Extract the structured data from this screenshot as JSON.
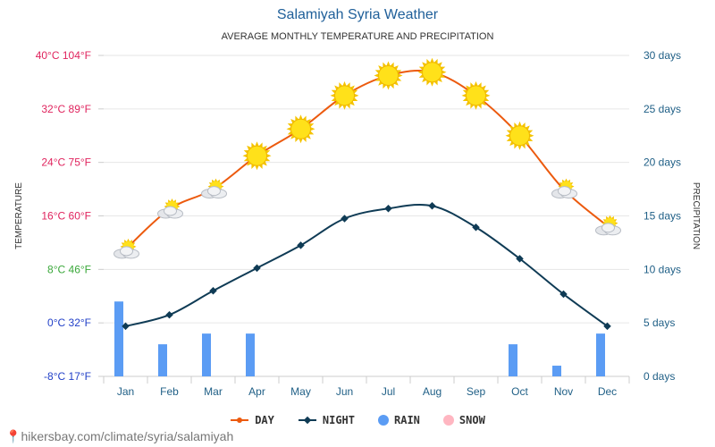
{
  "title": "Salamiyah Syria Weather",
  "subtitle": "AVERAGE MONTHLY TEMPERATURE AND PRECIPITATION",
  "footer_url": "hikersbay.com/climate/syria/salamiyah",
  "colors": {
    "day": "#ec5a0e",
    "night": "#0f3b55",
    "rain": "#5b9cf4",
    "snow": "#ffb6c1",
    "axis_right": "#1f5f86",
    "title": "#1f5f99"
  },
  "chart_data": {
    "type": "line",
    "title": "Salamiyah Syria Weather",
    "subtitle": "AVERAGE MONTHLY TEMPERATURE AND PRECIPITATION",
    "categories": [
      "Jan",
      "Feb",
      "Mar",
      "Apr",
      "May",
      "Jun",
      "Jul",
      "Aug",
      "Sep",
      "Oct",
      "Nov",
      "Dec"
    ],
    "ylabel_left": "TEMPERATURE",
    "ylabel_right": "PRECIPITATION",
    "ylim_left": [
      -8,
      40
    ],
    "ylim_right": [
      0,
      30
    ],
    "left_ticks": [
      {
        "value": 40,
        "label": "40°C 104°F",
        "color": "#e0245e"
      },
      {
        "value": 32,
        "label": "32°C 89°F",
        "color": "#e0245e"
      },
      {
        "value": 24,
        "label": "24°C 75°F",
        "color": "#e0245e"
      },
      {
        "value": 16,
        "label": "16°C 60°F",
        "color": "#e0245e"
      },
      {
        "value": 8,
        "label": "8°C 46°F",
        "color": "#3aa83a"
      },
      {
        "value": 0,
        "label": "0°C 32°F",
        "color": "#2240c8"
      },
      {
        "value": -8,
        "label": "-8°C 17°F",
        "color": "#2240c8"
      }
    ],
    "right_ticks": [
      {
        "value": 30,
        "label": "30 days"
      },
      {
        "value": 25,
        "label": "25 days"
      },
      {
        "value": 20,
        "label": "20 days"
      },
      {
        "value": 15,
        "label": "15 days"
      },
      {
        "value": 10,
        "label": "10 days"
      },
      {
        "value": 5,
        "label": "5 days"
      },
      {
        "value": 0,
        "label": "0 days"
      }
    ],
    "series": [
      {
        "name": "DAY",
        "type": "line",
        "axis": "left",
        "values": [
          11,
          17,
          20,
          25,
          29,
          34,
          37,
          37.5,
          34,
          28,
          20,
          14.5
        ],
        "weather_icons": [
          "partly-cloudy",
          "partly-cloudy",
          "partly-cloudy",
          "sun",
          "sun",
          "sun",
          "sun",
          "sun",
          "sun",
          "sun",
          "partly-cloudy",
          "partly-cloudy"
        ]
      },
      {
        "name": "NIGHT",
        "type": "line",
        "axis": "left",
        "values": [
          -0.5,
          1.2,
          4.8,
          8.2,
          11.6,
          15.6,
          17.1,
          17.5,
          14.3,
          9.6,
          4.3,
          -0.5
        ]
      },
      {
        "name": "RAIN",
        "type": "bar",
        "axis": "right",
        "values": [
          7,
          3,
          4,
          4,
          0,
          0,
          0,
          0,
          0,
          3,
          1,
          4
        ]
      },
      {
        "name": "SNOW",
        "type": "bar",
        "axis": "right",
        "values": [
          0,
          0,
          0,
          0,
          0,
          0,
          0,
          0,
          0,
          0,
          0,
          0
        ]
      }
    ]
  },
  "legend": [
    {
      "key": "day",
      "label": "DAY"
    },
    {
      "key": "night",
      "label": "NIGHT"
    },
    {
      "key": "rain",
      "label": "RAIN"
    },
    {
      "key": "snow",
      "label": "SNOW"
    }
  ]
}
